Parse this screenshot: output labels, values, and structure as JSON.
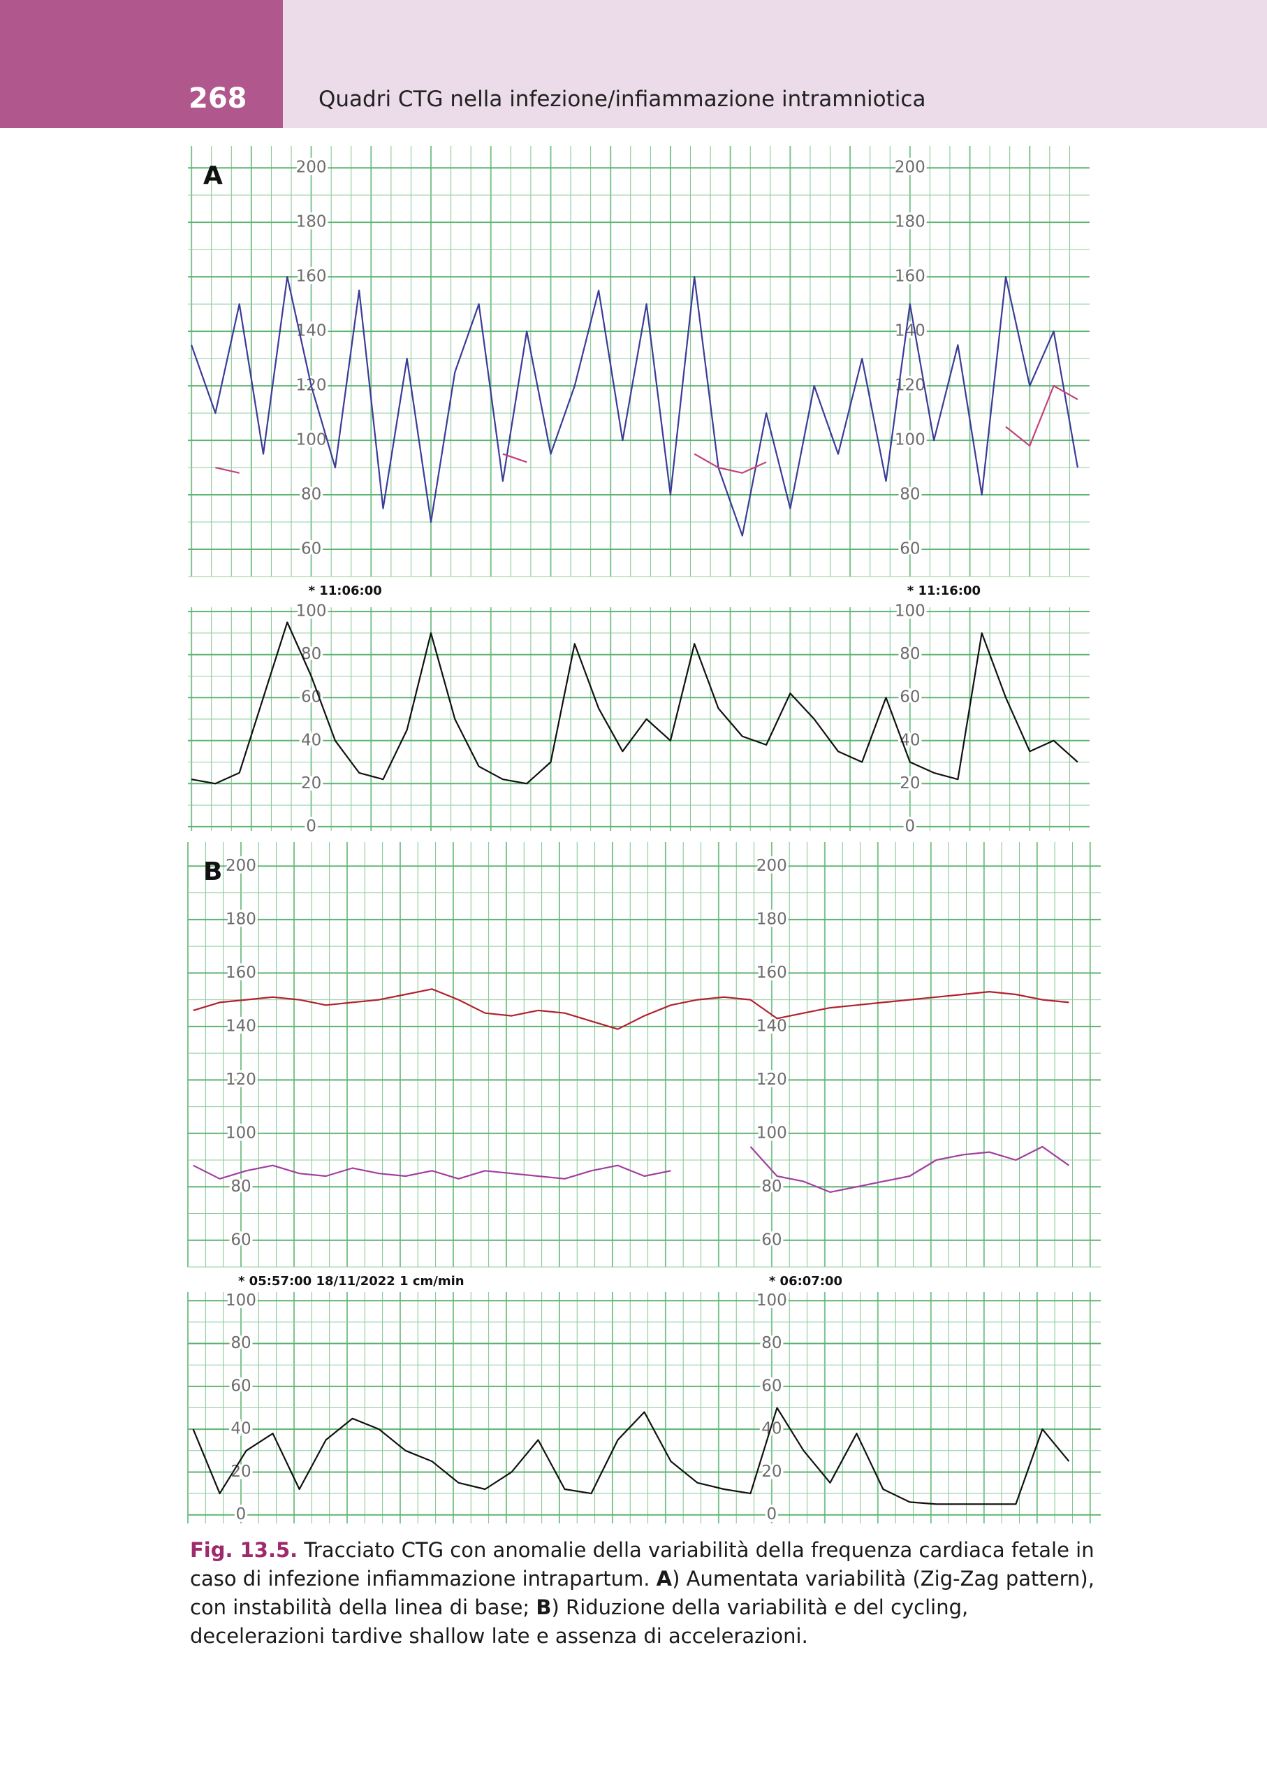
{
  "header": {
    "page_number": "268",
    "title": "Quadri CTG nella infezione/infiammazione intramniotica"
  },
  "chart_data": [
    {
      "type": "line",
      "panel_label": "A",
      "xlim": [
        -2.06,
        13.0
      ],
      "ylim": [
        50,
        208
      ],
      "yticks": [
        60,
        80,
        100,
        120,
        140,
        160,
        180,
        200
      ],
      "grid": true,
      "x": [
        -2.0,
        -1.6,
        -1.2,
        -0.8,
        -0.4,
        0,
        0.4,
        0.8,
        1.2,
        1.6,
        2.0,
        2.4,
        2.8,
        3.2,
        3.6,
        4.0,
        4.4,
        4.8,
        5.2,
        5.6,
        6.0,
        6.4,
        6.8,
        7.2,
        7.6,
        8.0,
        8.4,
        8.8,
        9.2,
        9.6,
        10.0,
        10.4,
        10.8,
        11.2,
        11.6,
        12.0,
        12.4,
        12.8
      ],
      "series": [
        {
          "color": "#3b3b98",
          "values": [
            135,
            110,
            150,
            95,
            160,
            120,
            90,
            155,
            75,
            130,
            70,
            125,
            150,
            85,
            140,
            95,
            120,
            155,
            100,
            150,
            80,
            160,
            90,
            65,
            110,
            75,
            120,
            95,
            130,
            85,
            150,
            100,
            135,
            80,
            160,
            120,
            140,
            90
          ]
        },
        {
          "color": "#c2417c",
          "values": [
            null,
            90,
            88,
            null,
            null,
            null,
            null,
            null,
            null,
            null,
            null,
            null,
            null,
            95,
            92,
            null,
            null,
            null,
            null,
            null,
            null,
            95,
            90,
            88,
            92,
            null,
            null,
            null,
            null,
            null,
            null,
            null,
            null,
            null,
            105,
            98,
            120,
            115
          ]
        }
      ],
      "annotations": [
        {
          "text": "* 11:06:00",
          "x": 0
        },
        {
          "text": "* 11:16:00",
          "x": 10
        }
      ]
    },
    {
      "type": "line",
      "xlim": [
        -2.06,
        13.0
      ],
      "ylim": [
        -2,
        102
      ],
      "yticks": [
        0,
        20,
        40,
        60,
        80,
        100
      ],
      "grid": true,
      "x": [
        -2.0,
        -1.6,
        -1.2,
        -0.8,
        -0.4,
        0,
        0.4,
        0.8,
        1.2,
        1.6,
        2.0,
        2.4,
        2.8,
        3.2,
        3.6,
        4.0,
        4.4,
        4.8,
        5.2,
        5.6,
        6.0,
        6.4,
        6.8,
        7.2,
        7.6,
        8.0,
        8.4,
        8.8,
        9.2,
        9.6,
        10.0,
        10.4,
        10.8,
        11.2,
        11.6,
        12.0,
        12.4,
        12.8
      ],
      "series": [
        {
          "color": "#111111",
          "values": [
            22,
            20,
            25,
            60,
            95,
            70,
            40,
            25,
            22,
            45,
            90,
            50,
            28,
            22,
            20,
            30,
            85,
            55,
            35,
            50,
            40,
            85,
            55,
            42,
            38,
            62,
            50,
            35,
            30,
            60,
            30,
            25,
            22,
            90,
            60,
            35,
            40,
            30
          ]
        }
      ]
    },
    {
      "type": "line",
      "panel_label": "B",
      "xlim": [
        -1,
        16.2
      ],
      "ylim": [
        50,
        209
      ],
      "yticks": [
        60,
        80,
        100,
        120,
        140,
        160,
        180,
        200
      ],
      "grid": true,
      "x": [
        -0.9,
        -0.4,
        0.1,
        0.6,
        1.1,
        1.6,
        2.1,
        2.6,
        3.1,
        3.6,
        4.1,
        4.6,
        5.1,
        5.6,
        6.1,
        6.6,
        7.1,
        7.6,
        8.1,
        8.6,
        9.1,
        9.6,
        10.1,
        10.6,
        11.1,
        11.6,
        12.1,
        12.6,
        13.1,
        13.6,
        14.1,
        14.6,
        15.1,
        15.6
      ],
      "series": [
        {
          "color": "#b3202e",
          "values": [
            146,
            149,
            150,
            151,
            150,
            148,
            149,
            150,
            152,
            154,
            150,
            145,
            144,
            146,
            145,
            142,
            139,
            144,
            148,
            150,
            151,
            150,
            143,
            145,
            147,
            148,
            149,
            150,
            151,
            152,
            153,
            152,
            150,
            149
          ]
        },
        {
          "color": "#a23ea0",
          "values": [
            88,
            83,
            86,
            88,
            85,
            84,
            87,
            85,
            84,
            86,
            83,
            86,
            85,
            84,
            83,
            86,
            88,
            84,
            86,
            null,
            null,
            95,
            84,
            82,
            78,
            80,
            82,
            84,
            90,
            92,
            93,
            90,
            95,
            88
          ]
        }
      ],
      "annotations": [
        {
          "text": "* 05:57:00  18/11/2022  1 cm/min",
          "x": 0
        },
        {
          "text": "* 06:07:00",
          "x": 10
        }
      ]
    },
    {
      "type": "line",
      "xlim": [
        -1,
        16.2
      ],
      "ylim": [
        -4,
        104
      ],
      "yticks": [
        0,
        20,
        40,
        60,
        80,
        100
      ],
      "grid": true,
      "x": [
        -0.9,
        -0.4,
        0.1,
        0.6,
        1.1,
        1.6,
        2.1,
        2.6,
        3.1,
        3.6,
        4.1,
        4.6,
        5.1,
        5.6,
        6.1,
        6.6,
        7.1,
        7.6,
        8.1,
        8.6,
        9.1,
        9.6,
        10.1,
        10.6,
        11.1,
        11.6,
        12.1,
        12.6,
        13.1,
        13.6,
        14.1,
        14.6,
        15.1,
        15.6
      ],
      "series": [
        {
          "color": "#111111",
          "values": [
            40,
            10,
            30,
            38,
            12,
            35,
            45,
            40,
            30,
            25,
            15,
            12,
            20,
            35,
            12,
            10,
            35,
            48,
            25,
            15,
            12,
            10,
            50,
            30,
            15,
            38,
            12,
            6,
            5,
            5,
            5,
            5,
            40,
            25
          ]
        }
      ]
    }
  ],
  "caption": {
    "label": "Fig. 13.5.",
    "text1": " Tracciato CTG con anomalie della variabilità della frequenza cardiaca fetale in caso di infezione infiammazione intrapartum. ",
    "bold_a": "A",
    "text2": ") Aumentata variabilità (Zig-Zag pattern), con instabilità della linea di base; ",
    "bold_b": "B",
    "text3": ") Riduzione della variabilità e del cycling, decelerazioni tardive shallow late e assenza di accelerazioni."
  }
}
